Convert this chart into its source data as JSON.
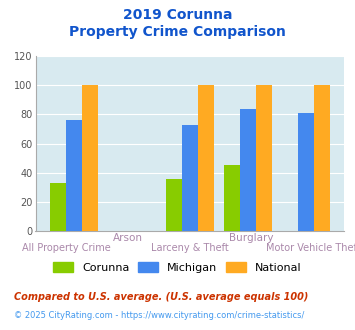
{
  "title_line1": "2019 Corunna",
  "title_line2": "Property Crime Comparison",
  "corunna": [
    33,
    0,
    36,
    45,
    0
  ],
  "michigan": [
    76,
    0,
    73,
    84,
    81
  ],
  "national": [
    100,
    0,
    100,
    100,
    100
  ],
  "corunna_color": "#88cc00",
  "michigan_color": "#4488ee",
  "national_color": "#ffaa22",
  "ylim": [
    0,
    120
  ],
  "yticks": [
    0,
    20,
    40,
    60,
    80,
    100,
    120
  ],
  "title_color": "#1155cc",
  "bg_color": "#d8eaf0",
  "top_labels": [
    "",
    "Arson",
    "",
    "Burglary",
    ""
  ],
  "bottom_labels": [
    "All Property Crime",
    "",
    "Larceny & Theft",
    "",
    "Motor Vehicle Theft"
  ],
  "n_groups": 5,
  "footnote1": "Compared to U.S. average. (U.S. average equals 100)",
  "footnote2": "© 2025 CityRating.com - https://www.cityrating.com/crime-statistics/",
  "footnote1_color": "#cc3300",
  "footnote2_color": "#4499ee",
  "legend_labels": [
    "Corunna",
    "Michigan",
    "National"
  ]
}
